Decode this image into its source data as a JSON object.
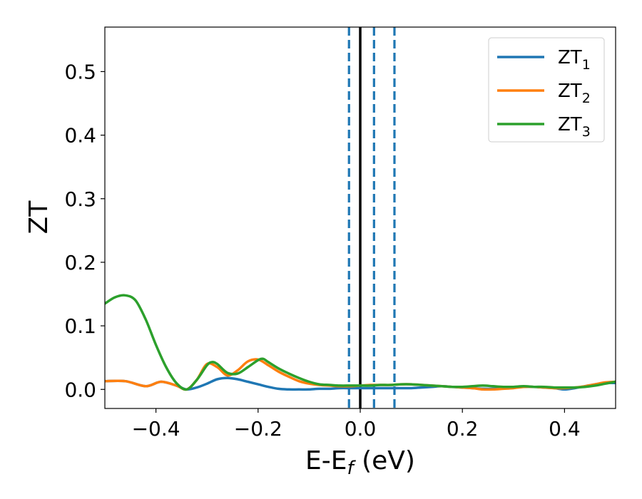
{
  "chart_data": {
    "type": "line",
    "title": "",
    "xlabel": "E-E",
    "xlabel_sub": "f",
    "xlabel_unit": " (eV)",
    "ylabel": "ZT",
    "xlim": [
      -0.5,
      0.5
    ],
    "ylim": [
      -0.03,
      0.57
    ],
    "x_ticks": [
      -0.4,
      -0.2,
      0.0,
      0.2,
      0.4
    ],
    "x_tick_labels": [
      "−0.4",
      "−0.2",
      "0.0",
      "0.2",
      "0.4"
    ],
    "y_ticks": [
      0.0,
      0.1,
      0.2,
      0.3,
      0.4,
      0.5
    ],
    "y_tick_labels": [
      "0.0",
      "0.1",
      "0.2",
      "0.3",
      "0.4",
      "0.5"
    ],
    "grid": false,
    "legend_position": "top-right",
    "vertical_lines": [
      {
        "x": -0.022,
        "style": "dashed",
        "color": "#1f77b4"
      },
      {
        "x": 0.0,
        "style": "solid",
        "color": "#000000"
      },
      {
        "x": 0.027,
        "style": "dashed",
        "color": "#1f77b4"
      },
      {
        "x": 0.067,
        "style": "dashed",
        "color": "#1f77b4"
      }
    ],
    "series": [
      {
        "name": "ZT",
        "subscript": "1",
        "color": "#1f77b4",
        "x": [
          -0.5,
          -0.46,
          -0.42,
          -0.39,
          -0.36,
          -0.34,
          -0.32,
          -0.3,
          -0.28,
          -0.26,
          -0.24,
          -0.22,
          -0.2,
          -0.18,
          -0.16,
          -0.14,
          -0.12,
          -0.1,
          -0.08,
          -0.06,
          -0.04,
          -0.02,
          0.0,
          0.02,
          0.04,
          0.06,
          0.08,
          0.1,
          0.12,
          0.14,
          0.16,
          0.18,
          0.2,
          0.22,
          0.24,
          0.26,
          0.28,
          0.3,
          0.32,
          0.34,
          0.36,
          0.38,
          0.4,
          0.42,
          0.44,
          0.46,
          0.48,
          0.5
        ],
        "y": [
          0.013,
          0.013,
          0.005,
          0.012,
          0.006,
          0.0,
          0.003,
          0.009,
          0.016,
          0.018,
          0.016,
          0.012,
          0.008,
          0.004,
          0.001,
          0.0,
          0.0,
          0.0,
          0.001,
          0.001,
          0.002,
          0.002,
          0.002,
          0.002,
          0.002,
          0.002,
          0.002,
          0.002,
          0.003,
          0.004,
          0.005,
          0.004,
          0.003,
          0.002,
          0.001,
          0.001,
          0.002,
          0.003,
          0.004,
          0.004,
          0.003,
          0.002,
          0.0,
          0.002,
          0.005,
          0.008,
          0.01,
          0.01
        ]
      },
      {
        "name": "ZT",
        "subscript": "2",
        "color": "#ff7f0e",
        "x": [
          -0.5,
          -0.46,
          -0.42,
          -0.39,
          -0.36,
          -0.34,
          -0.32,
          -0.3,
          -0.28,
          -0.26,
          -0.24,
          -0.22,
          -0.2,
          -0.18,
          -0.16,
          -0.14,
          -0.12,
          -0.1,
          -0.08,
          -0.06,
          -0.04,
          -0.02,
          0.0,
          0.02,
          0.04,
          0.06,
          0.08,
          0.1,
          0.12,
          0.14,
          0.16,
          0.18,
          0.2,
          0.22,
          0.24,
          0.26,
          0.28,
          0.3,
          0.32,
          0.34,
          0.36,
          0.38,
          0.4,
          0.42,
          0.44,
          0.46,
          0.48,
          0.5
        ],
        "y": [
          0.013,
          0.013,
          0.005,
          0.012,
          0.006,
          0.0,
          0.015,
          0.04,
          0.035,
          0.022,
          0.03,
          0.044,
          0.047,
          0.038,
          0.028,
          0.02,
          0.013,
          0.009,
          0.007,
          0.006,
          0.005,
          0.005,
          0.006,
          0.007,
          0.007,
          0.007,
          0.008,
          0.008,
          0.007,
          0.006,
          0.005,
          0.004,
          0.003,
          0.002,
          0.0,
          0.0,
          0.001,
          0.002,
          0.004,
          0.004,
          0.003,
          0.002,
          0.002,
          0.003,
          0.005,
          0.008,
          0.011,
          0.012
        ]
      },
      {
        "name": "ZT",
        "subscript": "3",
        "color": "#2ca02c",
        "x": [
          -0.5,
          -0.48,
          -0.46,
          -0.44,
          -0.42,
          -0.4,
          -0.38,
          -0.36,
          -0.34,
          -0.32,
          -0.3,
          -0.29,
          -0.28,
          -0.26,
          -0.24,
          -0.22,
          -0.2,
          -0.19,
          -0.18,
          -0.16,
          -0.14,
          -0.12,
          -0.1,
          -0.08,
          -0.06,
          -0.04,
          -0.02,
          0.0,
          0.02,
          0.04,
          0.06,
          0.08,
          0.1,
          0.12,
          0.14,
          0.16,
          0.18,
          0.2,
          0.22,
          0.24,
          0.26,
          0.28,
          0.3,
          0.32,
          0.34,
          0.36,
          0.38,
          0.4,
          0.42,
          0.44,
          0.46,
          0.48,
          0.5
        ],
        "y": [
          0.135,
          0.145,
          0.148,
          0.14,
          0.11,
          0.07,
          0.035,
          0.01,
          0.0,
          0.015,
          0.038,
          0.043,
          0.04,
          0.026,
          0.025,
          0.035,
          0.046,
          0.048,
          0.043,
          0.033,
          0.025,
          0.018,
          0.012,
          0.008,
          0.007,
          0.006,
          0.006,
          0.006,
          0.006,
          0.007,
          0.007,
          0.008,
          0.008,
          0.007,
          0.006,
          0.005,
          0.004,
          0.004,
          0.005,
          0.006,
          0.005,
          0.004,
          0.004,
          0.005,
          0.004,
          0.004,
          0.003,
          0.003,
          0.003,
          0.004,
          0.006,
          0.009,
          0.012
        ]
      }
    ]
  }
}
